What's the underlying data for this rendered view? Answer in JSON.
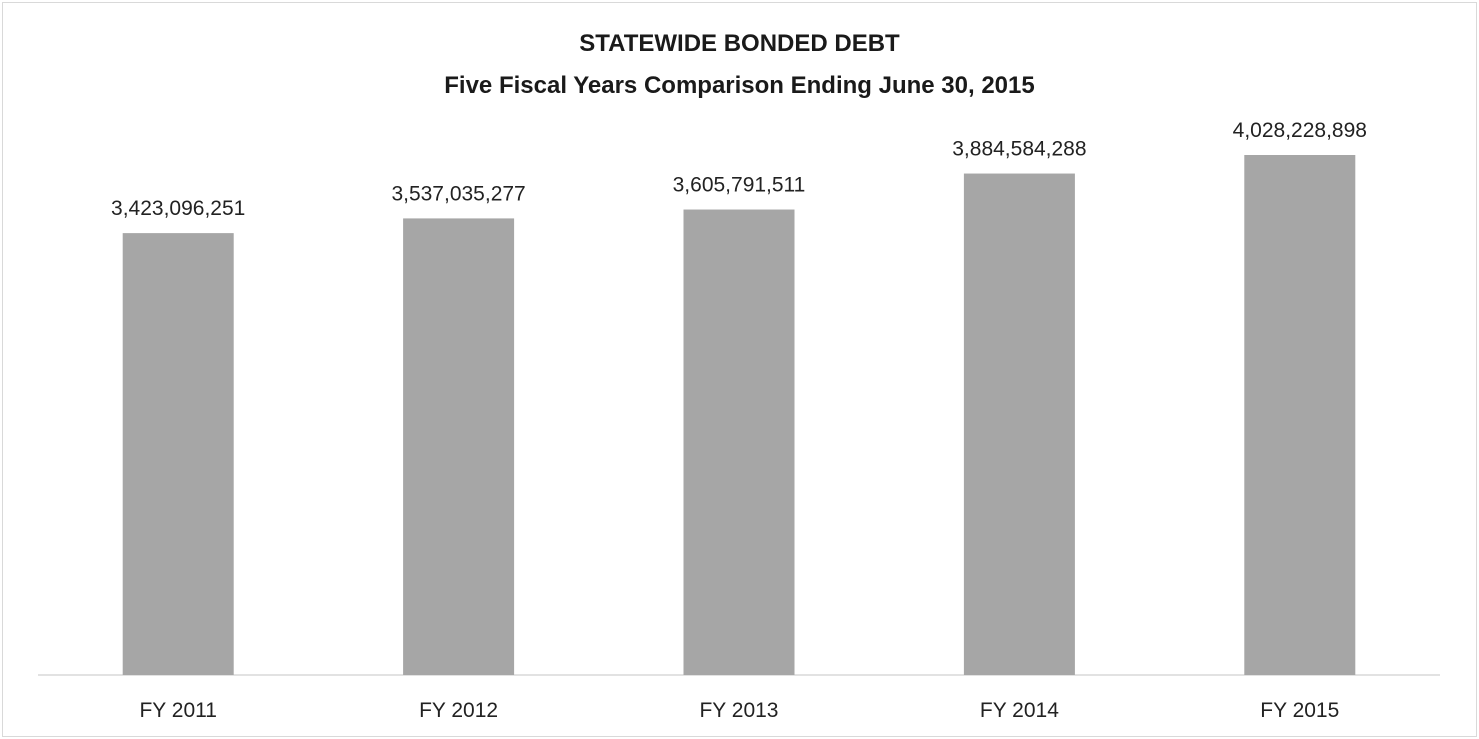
{
  "chart_data": {
    "type": "bar",
    "title": "STATEWIDE BONDED DEBT",
    "subtitle": "Five Fiscal Years Comparison Ending June 30, 2015",
    "categories": [
      "FY 2011",
      "FY 2012",
      "FY 2013",
      "FY 2014",
      "FY 2015"
    ],
    "values": [
      3423096251,
      3537035277,
      3605791511,
      3884584288,
      4028228898
    ],
    "data_labels": [
      "3,423,096,251",
      "3,537,035,277",
      "3,605,791,511",
      "3,884,584,288",
      "4,028,228,898"
    ],
    "xlabel": "",
    "ylabel": "",
    "ylim": [
      0,
      4028228898
    ],
    "grid": false,
    "legend": "none",
    "bar_color": "#a6a6a6"
  }
}
